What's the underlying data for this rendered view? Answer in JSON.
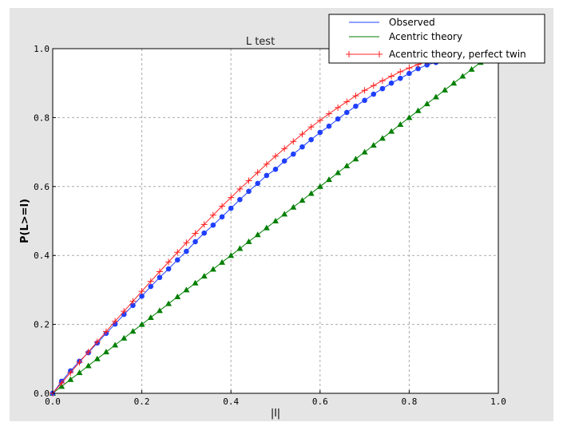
{
  "chart_data": {
    "type": "line",
    "title": "L test",
    "xlabel": "|l|",
    "ylabel": "P(L>=l)",
    "xlim": [
      0,
      1
    ],
    "ylim": [
      0,
      1
    ],
    "xticks": [
      "0.0",
      "0.2",
      "0.4",
      "0.6",
      "0.8",
      "1.0"
    ],
    "yticks": [
      "0.0",
      "0.2",
      "0.4",
      "0.6",
      "0.8",
      "1.0"
    ],
    "grid": true,
    "legend_position": "top-right",
    "background": "#e5e5e5",
    "series": [
      {
        "name": "Observed",
        "color": "#1f3fff",
        "marker": "circle",
        "x": [
          0,
          0.02,
          0.04,
          0.06,
          0.08,
          0.1,
          0.12,
          0.14,
          0.16,
          0.18,
          0.2,
          0.22,
          0.24,
          0.26,
          0.28,
          0.3,
          0.32,
          0.34,
          0.36,
          0.38,
          0.4,
          0.42,
          0.44,
          0.46,
          0.48,
          0.5,
          0.52,
          0.54,
          0.56,
          0.58,
          0.6,
          0.62,
          0.64,
          0.66,
          0.68,
          0.7,
          0.72,
          0.74,
          0.76,
          0.78,
          0.8,
          0.82,
          0.84,
          0.86,
          0.88,
          0.9,
          0.92,
          0.94,
          0.96,
          0.98,
          1.0
        ],
        "y": [
          0,
          0.035,
          0.065,
          0.093,
          0.118,
          0.146,
          0.174,
          0.201,
          0.229,
          0.255,
          0.282,
          0.31,
          0.336,
          0.361,
          0.387,
          0.412,
          0.44,
          0.465,
          0.488,
          0.512,
          0.537,
          0.562,
          0.586,
          0.609,
          0.632,
          0.65,
          0.674,
          0.694,
          0.715,
          0.736,
          0.757,
          0.775,
          0.796,
          0.815,
          0.833,
          0.85,
          0.868,
          0.884,
          0.9,
          0.914,
          0.928,
          0.942,
          0.953,
          0.96,
          0.968,
          0.976,
          0.984,
          0.99,
          0.995,
          0.998,
          1.0
        ]
      },
      {
        "name": "Acentric theory",
        "color": "#007f00",
        "marker": "triangle",
        "x": [
          0,
          0.02,
          0.04,
          0.06,
          0.08,
          0.1,
          0.12,
          0.14,
          0.16,
          0.18,
          0.2,
          0.22,
          0.24,
          0.26,
          0.28,
          0.3,
          0.32,
          0.34,
          0.36,
          0.38,
          0.4,
          0.42,
          0.44,
          0.46,
          0.48,
          0.5,
          0.52,
          0.54,
          0.56,
          0.58,
          0.6,
          0.62,
          0.64,
          0.66,
          0.68,
          0.7,
          0.72,
          0.74,
          0.76,
          0.78,
          0.8,
          0.82,
          0.84,
          0.86,
          0.88,
          0.9,
          0.92,
          0.94,
          0.96,
          0.98,
          1.0
        ],
        "y": [
          0,
          0.02,
          0.04,
          0.06,
          0.08,
          0.1,
          0.12,
          0.14,
          0.16,
          0.18,
          0.2,
          0.22,
          0.24,
          0.26,
          0.28,
          0.3,
          0.32,
          0.34,
          0.36,
          0.38,
          0.4,
          0.42,
          0.44,
          0.46,
          0.48,
          0.5,
          0.52,
          0.54,
          0.56,
          0.58,
          0.6,
          0.62,
          0.64,
          0.66,
          0.68,
          0.7,
          0.72,
          0.74,
          0.76,
          0.78,
          0.8,
          0.82,
          0.84,
          0.86,
          0.88,
          0.9,
          0.92,
          0.94,
          0.96,
          0.98,
          1.0
        ]
      },
      {
        "name": "Acentric theory, perfect twin",
        "color": "#ff2020",
        "marker": "plus",
        "x": [
          0,
          0.02,
          0.04,
          0.06,
          0.08,
          0.1,
          0.12,
          0.14,
          0.16,
          0.18,
          0.2,
          0.22,
          0.24,
          0.26,
          0.28,
          0.3,
          0.32,
          0.34,
          0.36,
          0.38,
          0.4,
          0.42,
          0.44,
          0.46,
          0.48,
          0.5,
          0.52,
          0.54,
          0.56,
          0.58,
          0.6,
          0.62,
          0.64,
          0.66,
          0.68,
          0.7,
          0.72,
          0.74,
          0.76,
          0.78,
          0.8,
          0.82,
          0.84,
          0.86,
          0.88,
          0.9,
          0.92,
          0.94,
          0.96,
          0.98,
          1.0
        ],
        "y": [
          0,
          0.03,
          0.06,
          0.09,
          0.12,
          0.1495,
          0.179,
          0.209,
          0.238,
          0.267,
          0.296,
          0.325,
          0.353,
          0.381,
          0.409,
          0.437,
          0.464,
          0.49,
          0.517,
          0.543,
          0.568,
          0.593,
          0.617,
          0.641,
          0.665,
          0.688,
          0.71,
          0.731,
          0.752,
          0.773,
          0.792,
          0.811,
          0.829,
          0.846,
          0.863,
          0.879,
          0.893,
          0.907,
          0.92,
          0.933,
          0.944,
          0.954,
          0.963,
          0.972,
          0.979,
          0.986,
          0.991,
          0.995,
          0.998,
          0.9995,
          1.0
        ]
      }
    ]
  }
}
